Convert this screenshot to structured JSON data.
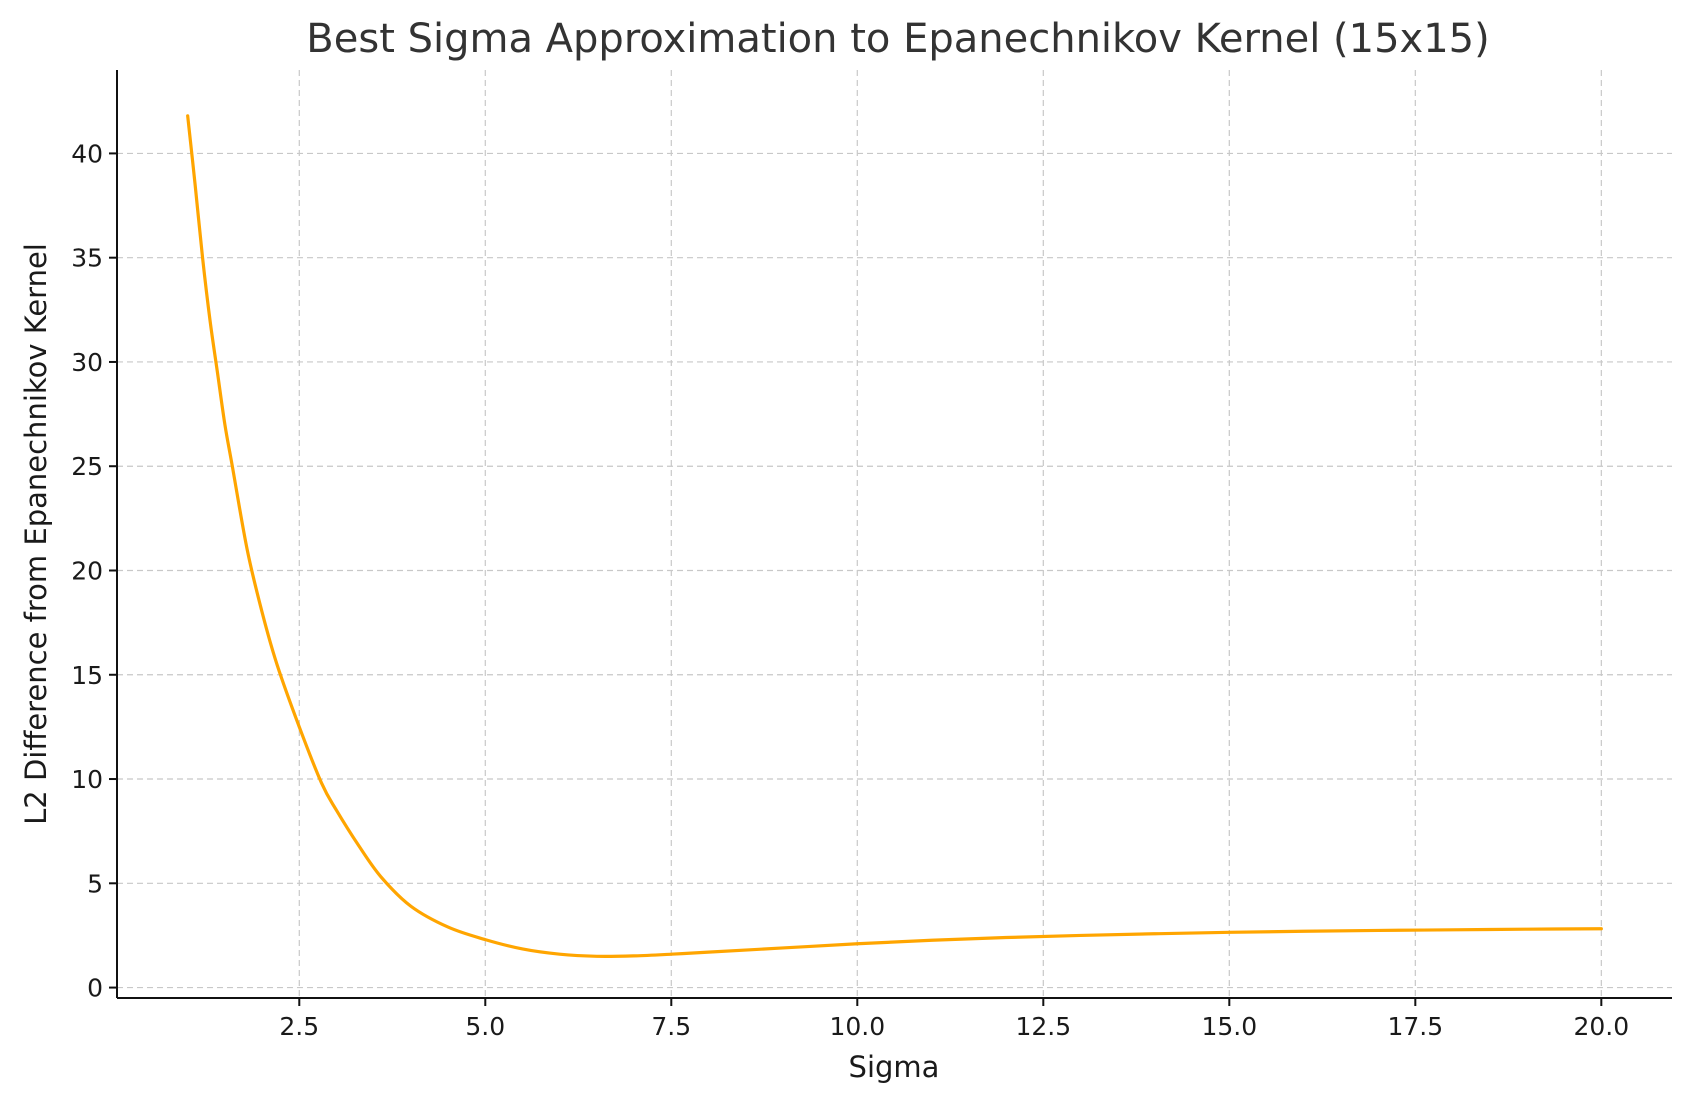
{
  "chart_data": {
    "type": "line",
    "title": "Best Sigma Approximation to Epanechnikov Kernel (15x15)",
    "xlabel": "Sigma",
    "ylabel": "L2 Difference from Epanechnikov Kernel",
    "xlim": [
      0.05,
      20.95
    ],
    "ylim": [
      -0.5,
      44
    ],
    "x_ticks": [
      2.5,
      5.0,
      7.5,
      10.0,
      12.5,
      15.0,
      17.5,
      20.0
    ],
    "x_tick_labels": [
      "2.5",
      "5.0",
      "7.5",
      "10.0",
      "12.5",
      "15.0",
      "17.5",
      "20.0"
    ],
    "y_ticks": [
      0,
      5,
      10,
      15,
      20,
      25,
      30,
      35,
      40
    ],
    "y_tick_labels": [
      "0",
      "5",
      "10",
      "15",
      "20",
      "25",
      "30",
      "35",
      "40"
    ],
    "grid": true,
    "series": [
      {
        "color": "#FFA500",
        "x": [
          1.0,
          1.1,
          1.2,
          1.3,
          1.4,
          1.5,
          1.6,
          1.8,
          2.0,
          2.2,
          2.5,
          2.8,
          3.0,
          3.3,
          3.6,
          4.0,
          4.5,
          5.0,
          5.5,
          6.0,
          6.5,
          7.0,
          7.5,
          8.0,
          9.0,
          10.0,
          11.0,
          12.0,
          13.0,
          14.0,
          15.0,
          16.0,
          17.0,
          18.0,
          19.0,
          20.0
        ],
        "y": [
          41.8,
          38.5,
          35.0,
          32.0,
          29.5,
          27.0,
          25.0,
          21.0,
          18.0,
          15.5,
          12.5,
          9.8,
          8.5,
          6.8,
          5.3,
          3.9,
          2.9,
          2.3,
          1.85,
          1.6,
          1.5,
          1.52,
          1.6,
          1.7,
          1.9,
          2.1,
          2.27,
          2.4,
          2.5,
          2.58,
          2.65,
          2.7,
          2.74,
          2.77,
          2.8,
          2.82
        ]
      }
    ]
  }
}
